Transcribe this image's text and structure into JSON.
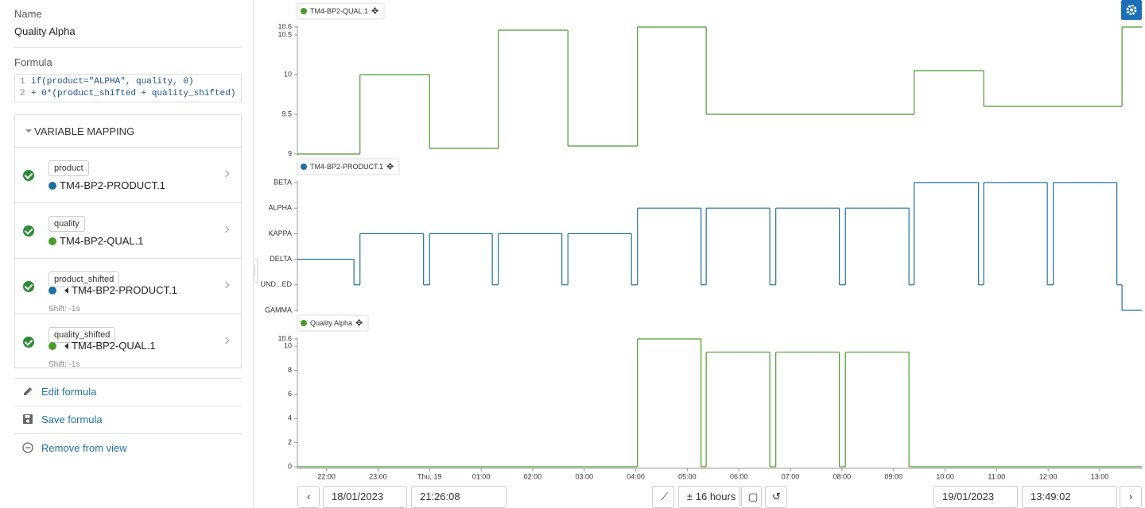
{
  "panel": {
    "name_label": "Name",
    "name_value": "Quality Alpha",
    "formula_label": "Formula",
    "code": [
      {
        "number": "1",
        "text": "if(product=\"ALPHA\", quality, 0)"
      },
      {
        "number": "2",
        "text": "+ 0*(product_shifted + quality_shifted)"
      }
    ],
    "mapping_title": "VARIABLE MAPPING",
    "variables": [
      {
        "tag": "product",
        "signal": "TM4-BP2-PRODUCT.1"
      },
      {
        "tag": "quality",
        "signal": "TM4-BP2-QUAL.1"
      },
      {
        "tag": "product_shifted",
        "signal": "TM4-BP2-PRODUCT.1",
        "shift": "Shift: -1s"
      },
      {
        "tag": "quality_shifted",
        "signal": "TM4-BP2-QUAL.1",
        "shift": "Shift: -1s"
      }
    ],
    "actions": [
      "Edit formula",
      "Save formula",
      "Remove from view"
    ]
  },
  "chart_data": [
    {
      "type": "step",
      "series": [
        {
          "name": "TM4-BP2-QUAL.1",
          "color": "#4b9a2c",
          "x": [
            "21:26:08",
            "22:39",
            "00:00",
            "01:20",
            "02:41",
            "04:02",
            "05:22",
            "09:24",
            "10:45",
            "13:26"
          ],
          "values": [
            9,
            10,
            9.07,
            10.56,
            9.1,
            10.6,
            9.5,
            10.05,
            9.6,
            10.6
          ]
        }
      ],
      "xlim": [
        "21:26:08",
        "13:49:02"
      ],
      "ylim": [
        9,
        10.6
      ],
      "yticks": [
        9,
        9.5,
        10,
        10.5,
        10.6
      ]
    },
    {
      "type": "step",
      "categories": [
        "GAMMA",
        "UND...ED",
        "DELTA",
        "KAPPA",
        "ALPHA",
        "BETA"
      ],
      "series": [
        {
          "name": "TM4-BP2-PRODUCT.1",
          "color": "#1f6fa3",
          "x": [
            "21:26:08",
            "22:32",
            "22:39",
            "23:53",
            "00:00",
            "01:13",
            "01:20",
            "02:34",
            "02:41",
            "03:55",
            "04:02",
            "05:16",
            "05:22",
            "06:36",
            "06:43",
            "07:57",
            "08:04",
            "09:18",
            "09:24",
            "10:39",
            "10:45",
            "11:59",
            "12:06",
            "13:20",
            "13:26"
          ],
          "values": [
            "DELTA",
            "UND...ED",
            "KAPPA",
            "UND...ED",
            "KAPPA",
            "UND...ED",
            "KAPPA",
            "UND...ED",
            "KAPPA",
            "UND...ED",
            "ALPHA",
            "UND...ED",
            "ALPHA",
            "UND...ED",
            "ALPHA",
            "UND...ED",
            "ALPHA",
            "UND...ED",
            "BETA",
            "UND...ED",
            "BETA",
            "UND...ED",
            "BETA",
            "UND...ED",
            "GAMMA"
          ]
        }
      ],
      "xlim": [
        "21:26:08",
        "13:49:02"
      ]
    },
    {
      "type": "step",
      "series": [
        {
          "name": "Quality Alpha",
          "color": "#4b9a2c",
          "x": [
            "21:26:08",
            "04:02",
            "05:16",
            "05:22",
            "06:36",
            "06:43",
            "07:57",
            "08:04",
            "09:18"
          ],
          "values": [
            0,
            10.6,
            0,
            9.5,
            0,
            9.5,
            0,
            9.5,
            0
          ]
        }
      ],
      "xlim": [
        "21:26:08",
        "13:49:02"
      ],
      "ylim": [
        0,
        10.6
      ],
      "yticks": [
        0,
        2,
        4,
        6,
        8,
        10,
        10.6
      ],
      "xticks": [
        "22:00",
        "23:00",
        {
          "value": "00:00",
          "label": "Thu, 19"
        },
        "01:00",
        "02:00",
        "03:00",
        "04:00",
        "05:00",
        "06:00",
        "07:00",
        "08:00",
        "09:00",
        "10:00",
        "11:00",
        "12:00",
        "13:00"
      ]
    }
  ],
  "toolbar": {
    "start_date": "18/01/2023",
    "start_time": "21:26:08",
    "range": "± 16 hours",
    "end_date": "19/01/2023",
    "end_time": "13:49:02"
  }
}
